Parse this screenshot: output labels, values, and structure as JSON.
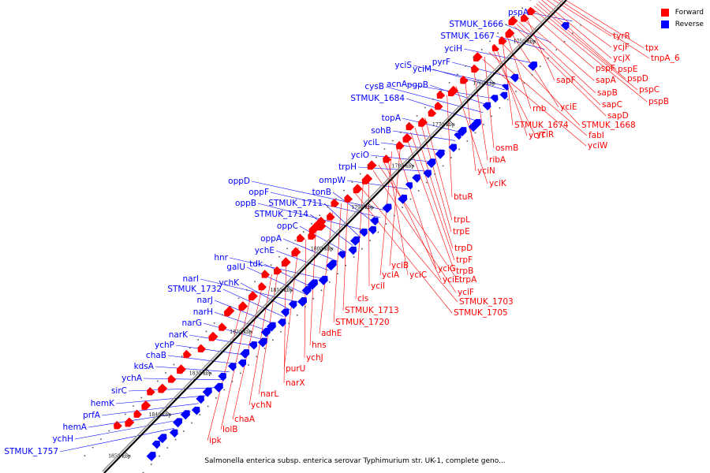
{
  "title": "Salmonella enterica subsp. enterica serovar Typhimurium str. UK-1, complete geno...",
  "legend": [
    {
      "label": "Forward",
      "color": "#ff0000"
    },
    {
      "label": "Reverse",
      "color": "#0000ff"
    }
  ],
  "ticks": [
    "1750 kbp",
    "1760 kbp",
    "1770 kbp",
    "1780 kbp",
    "1790 kbp",
    "1800 kbp",
    "1810 kbp",
    "1820 kbp",
    "1830 kbp",
    "1840 kbp",
    "1850 kbp"
  ],
  "reverse_genes": [
    "pspA",
    "STMUK_1666",
    "STMUK_1667",
    "yciH",
    "pyrF",
    "yciS",
    "yciM",
    "acnA",
    "pgpB",
    "cysB",
    "STMUK_1684",
    "topA",
    "sohB",
    "yciL",
    "yciO",
    "trpH",
    "ompW",
    "oppD",
    "oppF",
    "tonB",
    "oppB",
    "STMUK_1711",
    "STMUK_1714",
    "oppC",
    "oppA",
    "ychE",
    "hnr",
    "tdk",
    "galU",
    "narI",
    "ychK",
    "STMUK_1732",
    "narJ",
    "narH",
    "narG",
    "narK",
    "ychP",
    "chaB",
    "kdsA",
    "ychA",
    "sirC",
    "hemK",
    "prfA",
    "hemA",
    "ychH",
    "STMUK_1757"
  ],
  "forward_genes": [
    "tpx",
    "tnpA_6",
    "tyrR",
    "ycjF",
    "ycjX",
    "pspE",
    "pspD",
    "pspC",
    "pspB",
    "pspF",
    "sapF",
    "sapA",
    "sapB",
    "sapC",
    "sapD",
    "yciE",
    "rnb",
    "STMUK_1674",
    "STMUK_1668",
    "yciT",
    "yciR",
    "fabI",
    "osmB",
    "yciW",
    "ribA",
    "yciN",
    "yciK",
    "btuR",
    "trpL",
    "trpE",
    "trpD",
    "trpF",
    "trpB",
    "yciB",
    "yciG",
    "yciA",
    "yciC",
    "yciE",
    "trpA",
    "yciF",
    "yciI",
    "cls",
    "STMUK_1703",
    "STMUK_1705",
    "STMUK_1713",
    "STMUK_1720",
    "adhE",
    "hns",
    "ychJ",
    "purU",
    "narX",
    "narL",
    "ychN",
    "chaA",
    "lolB",
    "ipk"
  ]
}
